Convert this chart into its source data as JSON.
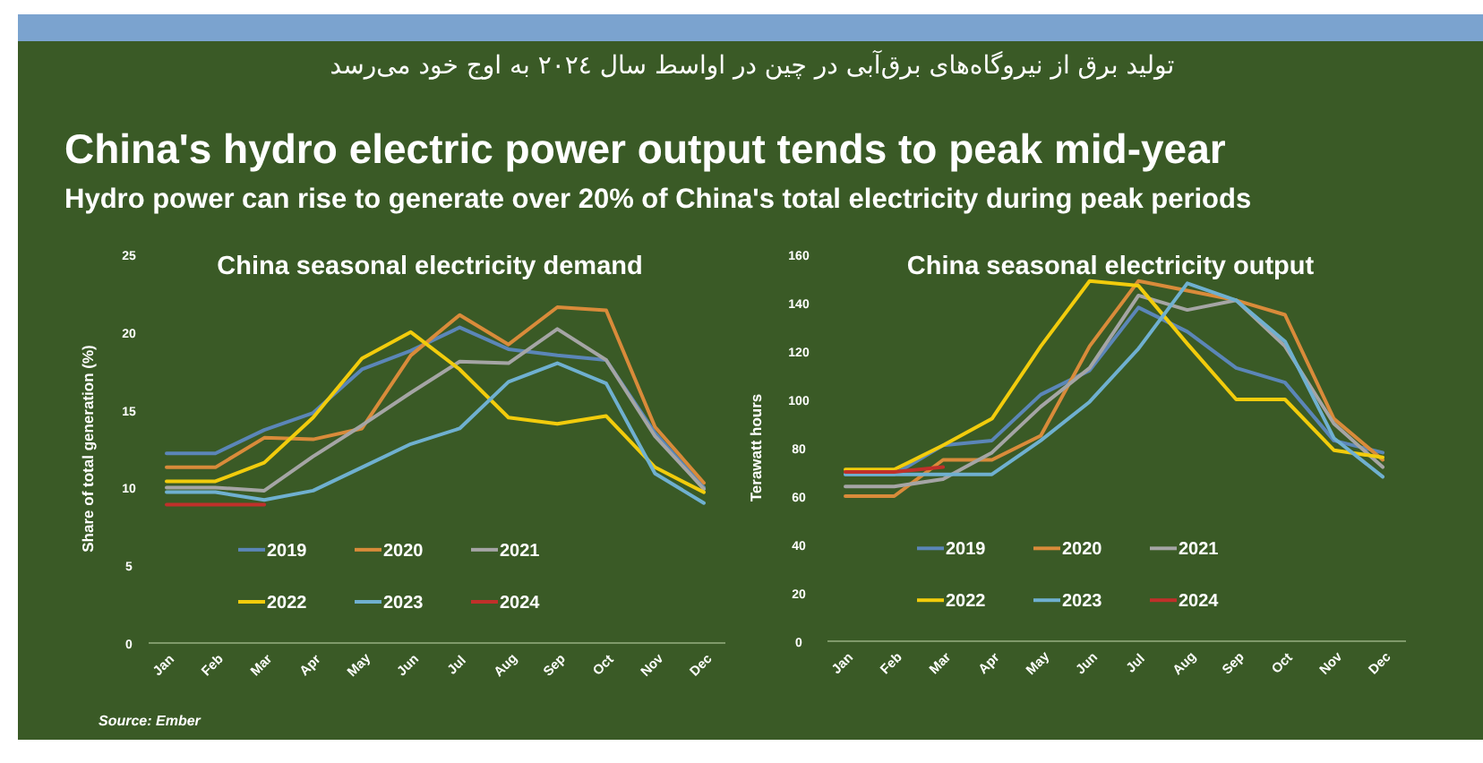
{
  "chart_data": [
    {
      "type": "line",
      "title": "China seasonal electricity demand",
      "ylabel": "Share of total generation (%)",
      "annotations": [
        "تولید برق از نیروگاه‌های برق‌آبی در چین در اواسط سال ۲۰۲٤ به اوج خود می‌رسد",
        "China's hydro electric power output tends to peak mid-year",
        "Hydro power can rise to generate over 20% of China's total electricity during peak periods",
        "Source: Ember"
      ],
      "categories": [
        "Jan",
        "Feb",
        "Mar",
        "Apr",
        "May",
        "Jun",
        "Jul",
        "Aug",
        "Sep",
        "Oct",
        "Nov",
        "Dec"
      ],
      "ylim": [
        0,
        25
      ],
      "yticks": [
        0,
        5,
        10,
        15,
        20,
        25
      ],
      "legend": "bottom",
      "marker": "none",
      "line_style": "solid",
      "series": [
        {
          "name": "2019",
          "color": "#5b86b8",
          "values": [
            12.2,
            12.2,
            13.7,
            14.8,
            17.6,
            18.8,
            20.3,
            18.9,
            18.5,
            18.2,
            13.5,
            10.0
          ]
        },
        {
          "name": "2020",
          "color": "#d98b3a",
          "values": [
            11.3,
            11.3,
            13.2,
            13.1,
            13.8,
            18.5,
            21.1,
            19.2,
            21.6,
            21.4,
            13.9,
            10.3
          ]
        },
        {
          "name": "2021",
          "color": "#a5a5a5",
          "values": [
            10.0,
            10.0,
            9.8,
            12.0,
            14.0,
            16.1,
            18.1,
            18.0,
            20.2,
            18.2,
            13.3,
            9.9
          ]
        },
        {
          "name": "2022",
          "color": "#f2cc0c",
          "values": [
            10.4,
            10.4,
            11.6,
            14.5,
            18.3,
            20.0,
            17.6,
            14.5,
            14.1,
            14.6,
            11.3,
            9.7
          ]
        },
        {
          "name": "2023",
          "color": "#6fb0d0",
          "values": [
            9.7,
            9.7,
            9.2,
            9.8,
            11.3,
            12.8,
            13.8,
            16.8,
            18.0,
            16.7,
            10.9,
            9.0
          ]
        },
        {
          "name": "2024",
          "color": "#c0302a",
          "values": [
            8.9,
            8.9,
            8.9,
            null,
            null,
            null,
            null,
            null,
            null,
            null,
            null,
            null
          ]
        }
      ]
    },
    {
      "type": "line",
      "title": "China seasonal electricity output",
      "ylabel": "Terawatt hours",
      "categories": [
        "Jan",
        "Feb",
        "Mar",
        "Apr",
        "May",
        "Jun",
        "Jul",
        "Aug",
        "Sep",
        "Oct",
        "Nov",
        "Dec"
      ],
      "ylim": [
        0,
        160
      ],
      "yticks": [
        0,
        20,
        40,
        60,
        80,
        100,
        120,
        140,
        160
      ],
      "legend": "bottom",
      "marker": "none",
      "line_style": "solid",
      "series": [
        {
          "name": "2019",
          "color": "#5b86b8",
          "values": [
            69,
            69,
            81,
            83,
            102,
            112,
            138,
            128,
            113,
            107,
            83,
            78
          ]
        },
        {
          "name": "2020",
          "color": "#d98b3a",
          "values": [
            60,
            60,
            75,
            75,
            85,
            122,
            149,
            145,
            141,
            135,
            92,
            75
          ]
        },
        {
          "name": "2021",
          "color": "#a5a5a5",
          "values": [
            64,
            64,
            67,
            78,
            97,
            113,
            143,
            137,
            141,
            122,
            90,
            72
          ]
        },
        {
          "name": "2022",
          "color": "#f2cc0c",
          "values": [
            71,
            71,
            81,
            92,
            122,
            149,
            147,
            123,
            100,
            100,
            79,
            76
          ]
        },
        {
          "name": "2023",
          "color": "#6fb0d0",
          "values": [
            69,
            69,
            69,
            69,
            83,
            99,
            121,
            148,
            141,
            124,
            84,
            68
          ]
        },
        {
          "name": "2024",
          "color": "#c0302a",
          "values": [
            70,
            70,
            72,
            null,
            null,
            null,
            null,
            null,
            null,
            null,
            null,
            null
          ]
        }
      ]
    }
  ]
}
